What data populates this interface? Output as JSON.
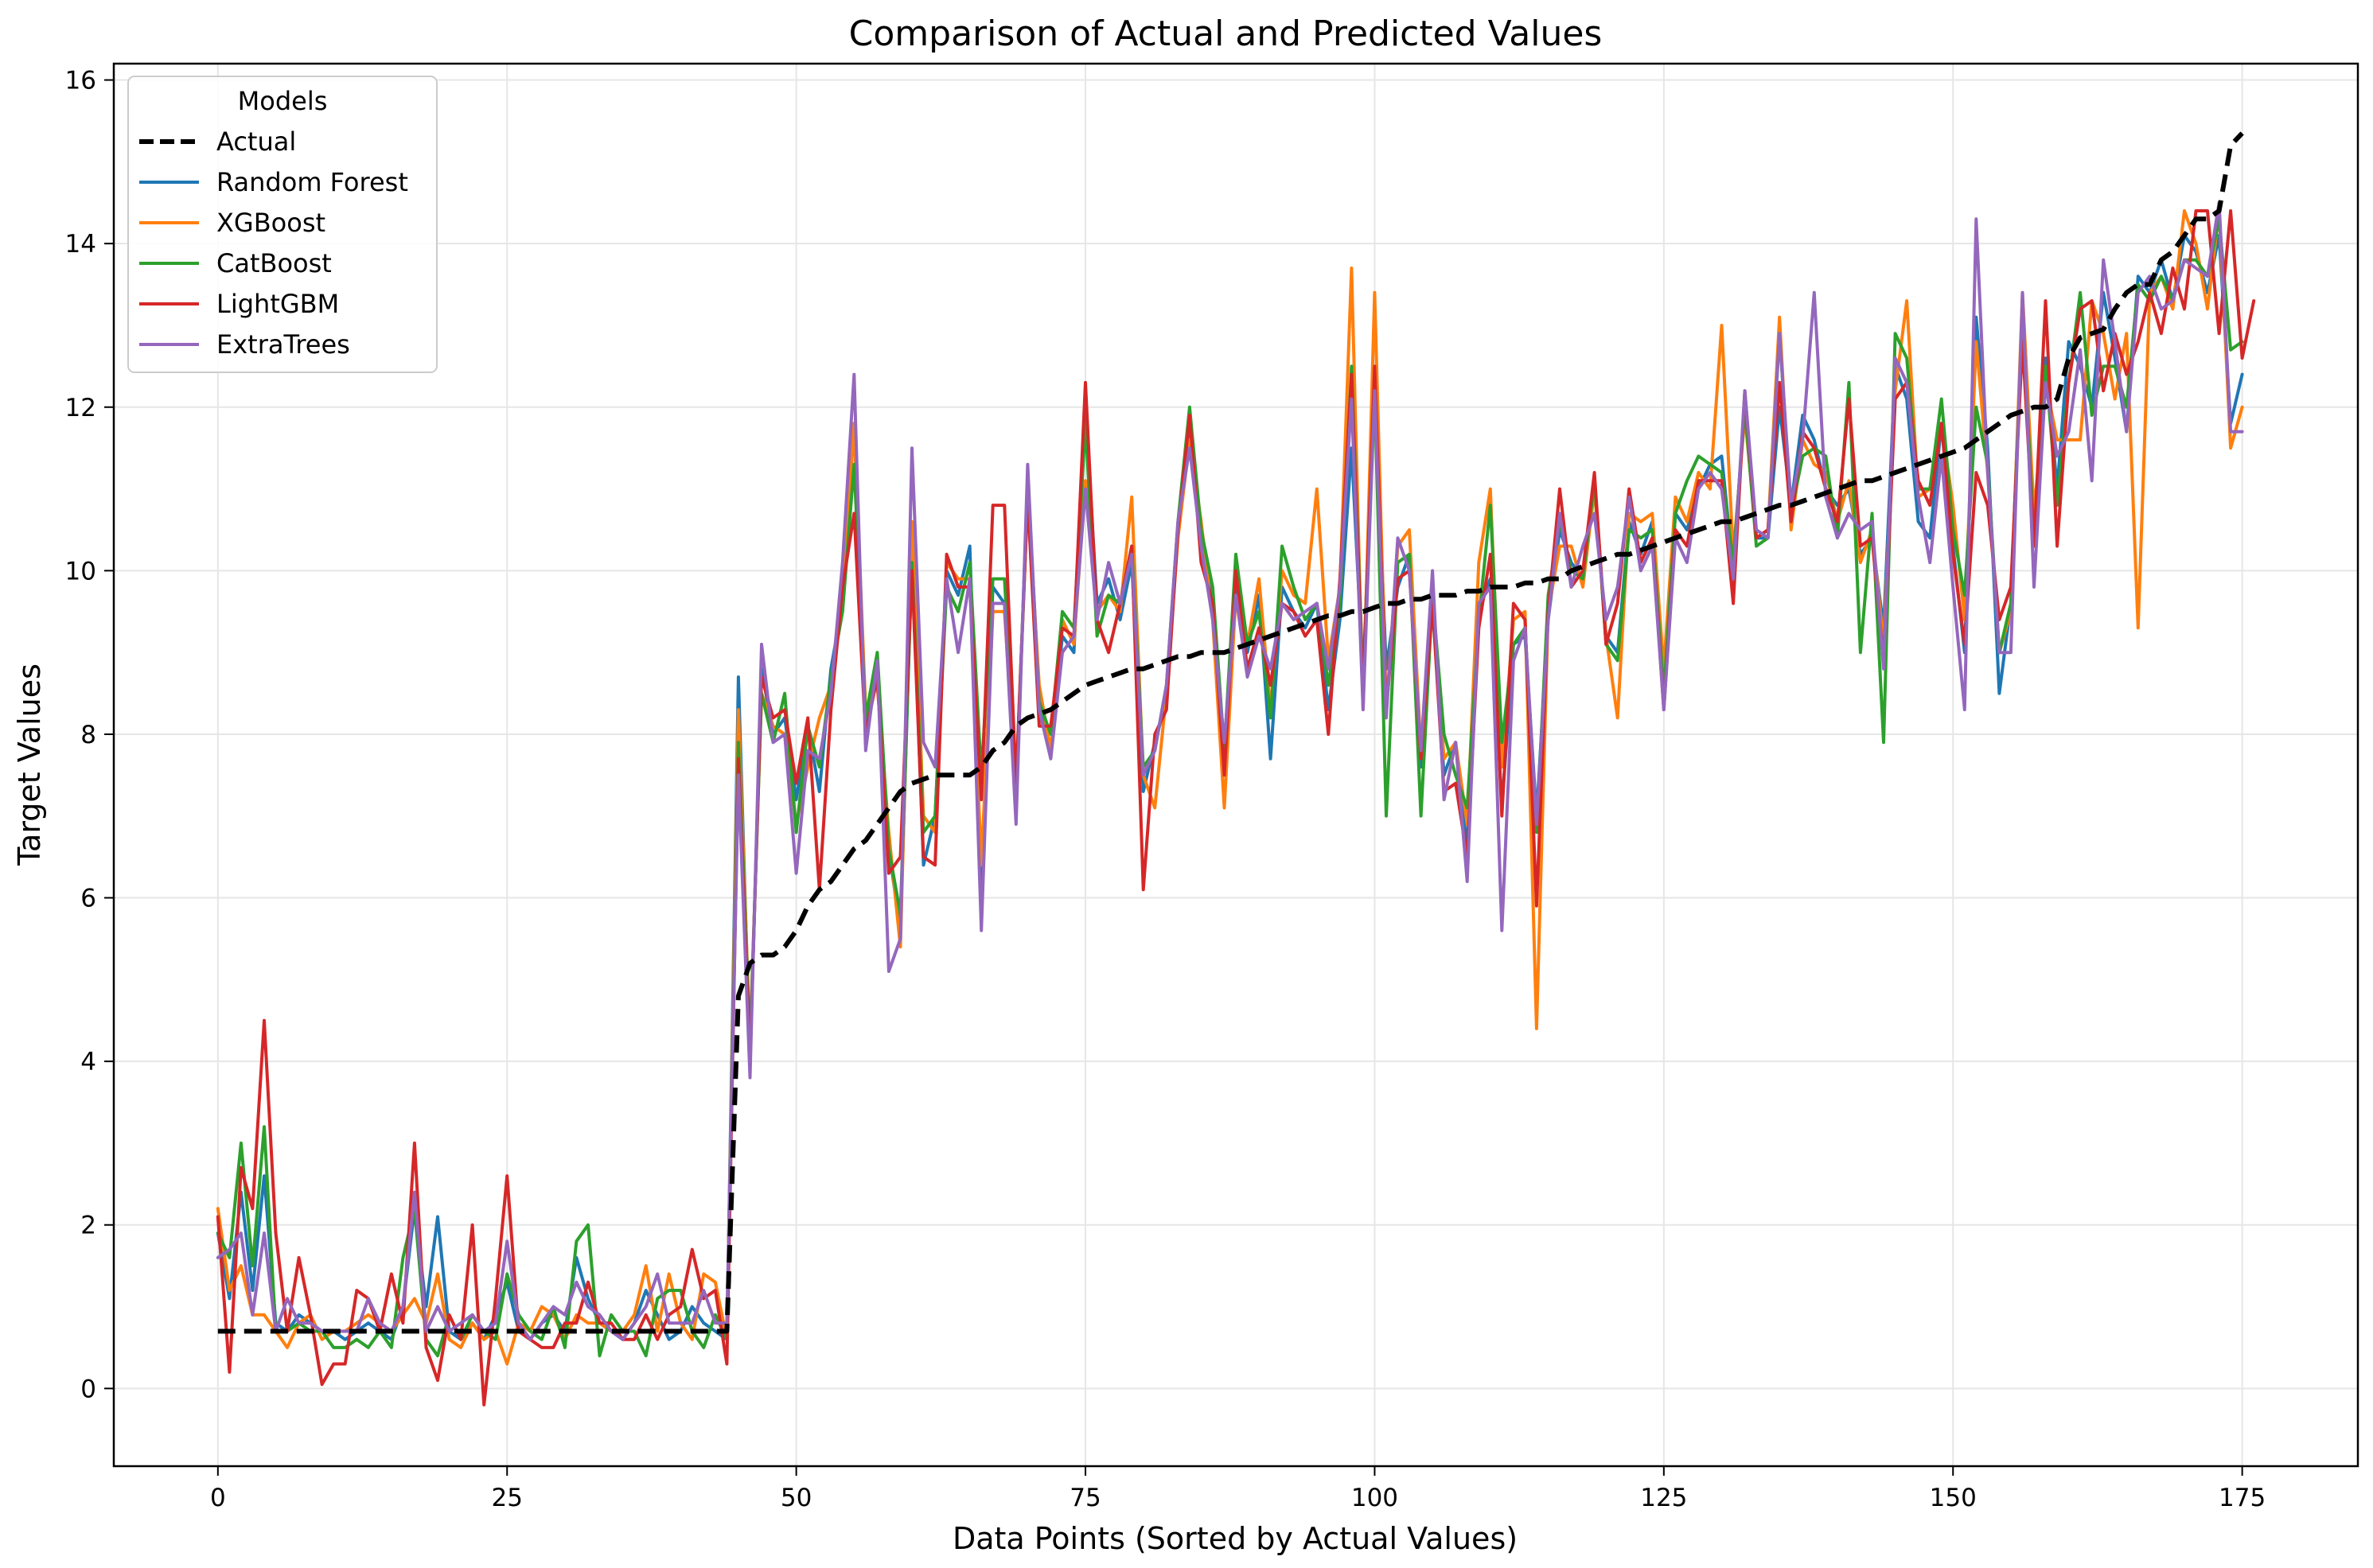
{
  "chart_data": {
    "type": "line",
    "title": "Comparison of Actual and Predicted Values",
    "xlabel": "Data Points (Sorted by Actual Values)",
    "ylabel": "Target Values",
    "xlim": [
      -9,
      185
    ],
    "ylim": [
      -0.95,
      16.2
    ],
    "xticks": [
      0,
      25,
      50,
      75,
      100,
      125,
      150,
      175
    ],
    "yticks": [
      0,
      2,
      4,
      6,
      8,
      10,
      12,
      14,
      16
    ],
    "grid": true,
    "legend": {
      "title": "Models",
      "placement": "top-left"
    },
    "series": [
      {
        "name": "Random Forest",
        "color": "#1f77b4",
        "dash": "",
        "values": [
          1.9,
          1.1,
          2.4,
          1.2,
          2.6,
          0.8,
          0.7,
          0.9,
          0.8,
          0.7,
          0.7,
          0.6,
          0.7,
          0.8,
          0.7,
          0.6,
          1.0,
          2.2,
          1.0,
          2.1,
          0.7,
          0.6,
          0.8,
          0.6,
          0.9,
          1.3,
          0.7,
          0.6,
          0.8,
          0.9,
          0.7,
          1.6,
          1.1,
          0.8,
          0.7,
          0.6,
          0.8,
          1.2,
          0.9,
          0.6,
          0.7,
          1.0,
          0.8,
          0.7,
          0.6,
          8.7,
          4.0,
          8.8,
          8.0,
          8.2,
          7.2,
          8.1,
          7.3,
          8.8,
          9.6,
          11.8,
          8.0,
          8.9,
          6.6,
          5.6,
          10.2,
          6.4,
          7.0,
          10.0,
          9.7,
          10.3,
          6.0,
          9.8,
          9.6,
          7.2,
          11.1,
          8.5,
          7.8,
          9.2,
          9.0,
          12.0,
          9.6,
          9.9,
          9.4,
          10.1,
          7.3,
          7.9,
          8.4,
          10.5,
          11.8,
          10.3,
          9.7,
          7.5,
          9.9,
          9.0,
          9.7,
          7.7,
          9.8,
          9.5,
          9.3,
          9.6,
          8.3,
          9.4,
          11.5,
          8.7,
          12.3,
          8.8,
          9.8,
          10.2,
          7.6,
          9.6,
          7.5,
          7.9,
          6.6,
          9.5,
          9.9,
          7.1,
          9.1,
          9.2,
          7.0,
          9.4,
          10.5,
          10.1,
          9.9,
          11.1,
          9.2,
          9.0,
          10.6,
          10.2,
          10.6,
          8.6,
          10.7,
          10.5,
          11.0,
          11.3,
          11.4,
          10.0,
          12.1,
          10.4,
          10.4,
          12.0,
          10.8,
          11.9,
          11.6,
          11.0,
          10.8,
          11.0,
          10.2,
          10.4,
          9.3,
          12.5,
          12.1,
          10.6,
          10.4,
          11.8,
          10.3,
          9.0,
          13.1,
          11.5,
          8.5,
          9.6,
          13.2,
          10.5,
          12.6,
          11.0,
          12.8,
          12.5,
          12.0,
          13.4,
          12.6,
          11.7,
          13.6,
          13.4,
          13.8,
          13.3,
          14.1,
          13.9,
          13.4,
          14.1,
          11.8,
          12.4
        ]
      },
      {
        "name": "XGBoost",
        "color": "#ff7f0e",
        "dash": "",
        "values": [
          2.2,
          1.2,
          1.5,
          0.9,
          0.9,
          0.7,
          0.5,
          0.8,
          0.9,
          0.6,
          0.7,
          0.7,
          0.8,
          0.9,
          0.8,
          0.7,
          0.9,
          1.1,
          0.8,
          1.4,
          0.6,
          0.5,
          0.8,
          0.6,
          0.7,
          0.3,
          0.8,
          0.7,
          1.0,
          0.9,
          0.6,
          0.9,
          0.8,
          0.8,
          0.7,
          0.7,
          0.9,
          1.5,
          0.7,
          1.4,
          0.8,
          0.6,
          1.4,
          1.3,
          0.6,
          8.3,
          4.2,
          8.5,
          8.1,
          8.0,
          6.9,
          7.6,
          8.2,
          8.6,
          9.7,
          11.8,
          8.3,
          8.6,
          6.8,
          5.4,
          10.6,
          7.0,
          6.8,
          10.1,
          9.9,
          9.9,
          6.4,
          9.5,
          9.5,
          7.3,
          10.9,
          8.6,
          7.8,
          9.4,
          9.1,
          11.1,
          9.5,
          9.7,
          9.5,
          10.9,
          7.5,
          7.1,
          8.5,
          10.4,
          11.6,
          10.6,
          9.4,
          7.1,
          9.7,
          9.1,
          9.9,
          8.3,
          10.0,
          9.7,
          9.6,
          11.0,
          8.9,
          9.8,
          13.7,
          8.3,
          13.4,
          8.3,
          10.3,
          10.5,
          7.8,
          9.7,
          7.7,
          7.9,
          6.9,
          10.1,
          11.0,
          7.6,
          9.4,
          9.5,
          4.4,
          9.5,
          10.3,
          10.3,
          9.8,
          11.0,
          9.2,
          8.2,
          10.7,
          10.6,
          10.7,
          8.8,
          10.9,
          10.6,
          11.2,
          11.0,
          13.0,
          10.2,
          11.9,
          10.4,
          10.5,
          13.1,
          10.5,
          11.6,
          11.3,
          11.2,
          10.6,
          11.1,
          10.1,
          10.5,
          9.1,
          12.2,
          13.3,
          10.9,
          11.0,
          11.8,
          10.8,
          9.4,
          12.8,
          11.2,
          9.0,
          9.5,
          13.4,
          10.7,
          12.3,
          11.6,
          11.6,
          11.6,
          13.3,
          12.9,
          12.1,
          12.9,
          9.3,
          13.4,
          13.6,
          13.2,
          14.4,
          14.0,
          13.2,
          14.4,
          11.5,
          12.0
        ]
      },
      {
        "name": "CatBoost",
        "color": "#2ca02c",
        "dash": "",
        "values": [
          1.9,
          1.6,
          3.0,
          1.5,
          3.2,
          0.7,
          0.7,
          0.8,
          0.7,
          0.7,
          0.5,
          0.5,
          0.6,
          0.5,
          0.7,
          0.5,
          1.6,
          2.2,
          0.6,
          0.4,
          0.9,
          0.6,
          0.9,
          0.7,
          0.6,
          1.4,
          0.9,
          0.7,
          0.6,
          1.0,
          0.5,
          1.8,
          2.0,
          0.4,
          0.9,
          0.7,
          0.7,
          0.4,
          1.1,
          1.2,
          1.2,
          0.7,
          0.5,
          0.9,
          0.6,
          7.9,
          4.2,
          8.5,
          7.9,
          8.5,
          6.8,
          8.1,
          7.6,
          8.7,
          9.5,
          11.3,
          8.2,
          9.0,
          6.6,
          5.8,
          10.1,
          6.8,
          7.0,
          9.8,
          9.5,
          10.1,
          7.5,
          9.9,
          9.9,
          7.4,
          10.9,
          8.4,
          8.0,
          9.5,
          9.3,
          11.8,
          9.2,
          9.7,
          9.6,
          10.3,
          7.6,
          7.8,
          8.6,
          10.6,
          12.0,
          10.5,
          9.8,
          7.8,
          10.2,
          9.1,
          9.5,
          8.2,
          10.3,
          9.8,
          9.4,
          9.6,
          8.6,
          9.6,
          12.5,
          8.6,
          12.2,
          7.0,
          10.1,
          10.2,
          7.0,
          9.7,
          8.0,
          7.5,
          7.1,
          9.4,
          10.8,
          7.9,
          9.1,
          9.3,
          6.8,
          9.7,
          10.6,
          10.0,
          9.9,
          11.1,
          9.1,
          8.9,
          10.5,
          10.4,
          10.5,
          8.5,
          10.7,
          11.1,
          11.4,
          11.3,
          11.2,
          10.1,
          12.0,
          10.3,
          10.4,
          12.9,
          10.7,
          11.4,
          11.5,
          11.4,
          10.4,
          12.3,
          9.0,
          10.7,
          7.9,
          12.9,
          12.6,
          11.0,
          11.0,
          12.1,
          10.5,
          9.7,
          12.0,
          11.3,
          9.0,
          9.6,
          13.1,
          10.4,
          12.5,
          10.8,
          12.3,
          13.4,
          11.9,
          12.5,
          12.5,
          12.0,
          13.5,
          13.3,
          13.6,
          13.3,
          13.8,
          13.8,
          13.6,
          14.3,
          12.7,
          12.8
        ]
      },
      {
        "name": "LightGBM",
        "color": "#d62728",
        "dash": "",
        "values": [
          2.1,
          0.2,
          2.7,
          2.2,
          4.5,
          1.9,
          0.7,
          1.6,
          0.9,
          0.05,
          0.3,
          0.3,
          1.2,
          1.1,
          0.7,
          1.4,
          0.8,
          3.0,
          0.5,
          0.1,
          0.9,
          0.6,
          2.0,
          -0.2,
          1.1,
          2.6,
          0.7,
          0.6,
          0.5,
          0.5,
          0.8,
          0.8,
          1.3,
          0.8,
          0.8,
          0.6,
          0.6,
          0.9,
          0.6,
          0.9,
          1.0,
          1.7,
          1.1,
          1.2,
          0.3,
          7.7,
          4.0,
          8.7,
          8.2,
          8.3,
          7.4,
          8.2,
          6.1,
          8.3,
          9.8,
          10.7,
          8.0,
          8.7,
          6.3,
          6.5,
          10.0,
          6.5,
          6.4,
          10.2,
          9.8,
          9.8,
          7.2,
          10.8,
          10.8,
          7.4,
          10.9,
          8.1,
          8.1,
          9.3,
          9.2,
          12.3,
          9.4,
          9.0,
          9.6,
          10.3,
          6.1,
          8.0,
          8.3,
          10.5,
          11.9,
          10.1,
          9.6,
          7.5,
          10.0,
          8.8,
          9.3,
          8.6,
          9.6,
          9.5,
          9.2,
          9.4,
          8.0,
          9.9,
          12.4,
          8.5,
          12.5,
          8.3,
          9.9,
          10.0,
          7.7,
          9.6,
          7.3,
          7.4,
          6.5,
          9.3,
          10.2,
          7.0,
          9.6,
          9.4,
          5.9,
          9.5,
          11.0,
          9.8,
          10.0,
          11.2,
          9.1,
          9.6,
          11.0,
          10.1,
          10.4,
          8.3,
          10.5,
          10.3,
          11.1,
          11.1,
          11.1,
          9.6,
          12.2,
          10.4,
          10.5,
          12.3,
          10.6,
          11.7,
          11.5,
          11.0,
          10.6,
          12.1,
          10.3,
          10.4,
          8.9,
          12.1,
          12.3,
          11.1,
          10.8,
          11.8,
          10.2,
          9.1,
          11.2,
          10.8,
          9.4,
          9.8,
          12.8,
          10.3,
          13.3,
          10.3,
          12.3,
          13.2,
          13.3,
          12.2,
          12.9,
          12.4,
          12.8,
          13.4,
          12.9,
          13.7,
          13.2,
          14.4,
          14.4,
          12.9,
          14.4,
          12.6,
          13.3
        ]
      },
      {
        "name": "ExtraTrees",
        "color": "#9467bd",
        "dash": "",
        "values": [
          1.6,
          1.7,
          1.9,
          0.9,
          1.9,
          0.7,
          1.1,
          0.8,
          0.8,
          0.7,
          0.7,
          0.7,
          0.7,
          1.1,
          0.8,
          0.7,
          1.0,
          2.4,
          0.7,
          1.0,
          0.7,
          0.8,
          0.9,
          0.7,
          0.8,
          1.8,
          0.8,
          0.6,
          0.8,
          1.0,
          0.9,
          1.3,
          1.0,
          0.9,
          0.7,
          0.6,
          0.8,
          1.0,
          1.4,
          0.8,
          0.8,
          0.8,
          1.2,
          0.8,
          0.8,
          7.5,
          3.8,
          9.1,
          7.9,
          8.0,
          6.3,
          7.8,
          7.7,
          8.5,
          10.1,
          12.4,
          7.8,
          8.9,
          5.1,
          5.5,
          11.5,
          7.9,
          7.6,
          9.9,
          9.0,
          9.9,
          5.6,
          9.6,
          9.6,
          6.9,
          11.3,
          8.3,
          7.7,
          9.0,
          9.2,
          11.0,
          9.4,
          10.1,
          9.6,
          10.2,
          7.5,
          7.8,
          8.6,
          10.6,
          11.5,
          10.3,
          9.4,
          7.9,
          9.7,
          8.7,
          9.2,
          8.8,
          9.6,
          9.4,
          9.5,
          9.6,
          8.8,
          9.8,
          12.1,
          8.3,
          12.2,
          8.2,
          10.4,
          10.0,
          7.8,
          10.0,
          7.2,
          7.9,
          6.2,
          9.6,
          9.8,
          5.6,
          8.9,
          9.3,
          6.9,
          9.4,
          10.7,
          9.8,
          10.3,
          10.7,
          9.4,
          9.8,
          10.9,
          10.0,
          10.3,
          8.3,
          10.4,
          10.1,
          11.0,
          11.2,
          11.0,
          9.9,
          12.2,
          10.5,
          10.4,
          12.9,
          10.8,
          11.6,
          13.4,
          10.9,
          10.4,
          10.7,
          10.5,
          10.6,
          8.8,
          12.6,
          12.3,
          10.9,
          10.1,
          11.4,
          9.8,
          8.3,
          14.3,
          11.2,
          9.0,
          9.0,
          13.4,
          9.8,
          12.3,
          11.4,
          11.7,
          12.7,
          11.1,
          13.8,
          12.8,
          11.7,
          13.4,
          13.6,
          13.2,
          13.3,
          13.8,
          13.7,
          13.6,
          14.5,
          11.7,
          11.7
        ]
      },
      {
        "name": "Actual",
        "color": "#000000",
        "dash": "22 11",
        "values": [
          0.7,
          0.7,
          0.7,
          0.7,
          0.7,
          0.7,
          0.7,
          0.7,
          0.7,
          0.7,
          0.7,
          0.7,
          0.7,
          0.7,
          0.7,
          0.7,
          0.7,
          0.7,
          0.7,
          0.7,
          0.7,
          0.7,
          0.7,
          0.7,
          0.7,
          0.7,
          0.7,
          0.7,
          0.7,
          0.7,
          0.7,
          0.7,
          0.7,
          0.7,
          0.7,
          0.7,
          0.7,
          0.7,
          0.7,
          0.7,
          0.7,
          0.7,
          0.7,
          0.7,
          0.7,
          4.8,
          5.2,
          5.3,
          5.3,
          5.4,
          5.6,
          5.9,
          6.1,
          6.2,
          6.4,
          6.6,
          6.7,
          6.9,
          7.1,
          7.3,
          7.4,
          7.45,
          7.5,
          7.5,
          7.5,
          7.5,
          7.6,
          7.8,
          7.9,
          8.1,
          8.2,
          8.25,
          8.3,
          8.4,
          8.5,
          8.6,
          8.65,
          8.7,
          8.75,
          8.8,
          8.8,
          8.85,
          8.9,
          8.95,
          8.95,
          9.0,
          9.0,
          9.0,
          9.05,
          9.1,
          9.15,
          9.2,
          9.25,
          9.3,
          9.35,
          9.4,
          9.45,
          9.45,
          9.5,
          9.5,
          9.55,
          9.6,
          9.6,
          9.65,
          9.65,
          9.7,
          9.7,
          9.7,
          9.75,
          9.75,
          9.8,
          9.8,
          9.8,
          9.85,
          9.85,
          9.9,
          9.9,
          10.0,
          10.05,
          10.1,
          10.15,
          10.2,
          10.2,
          10.25,
          10.3,
          10.35,
          10.4,
          10.45,
          10.5,
          10.55,
          10.6,
          10.6,
          10.65,
          10.7,
          10.75,
          10.8,
          10.8,
          10.85,
          10.9,
          10.95,
          11.0,
          11.05,
          11.1,
          11.1,
          11.15,
          11.2,
          11.25,
          11.3,
          11.35,
          11.4,
          11.45,
          11.5,
          11.6,
          11.7,
          11.8,
          11.9,
          11.95,
          12.0,
          12.0,
          12.1,
          12.6,
          12.85,
          12.9,
          12.95,
          13.2,
          13.4,
          13.5,
          13.5,
          13.8,
          13.9,
          14.1,
          14.3,
          14.3,
          14.4,
          15.2,
          15.35
        ]
      }
    ]
  }
}
